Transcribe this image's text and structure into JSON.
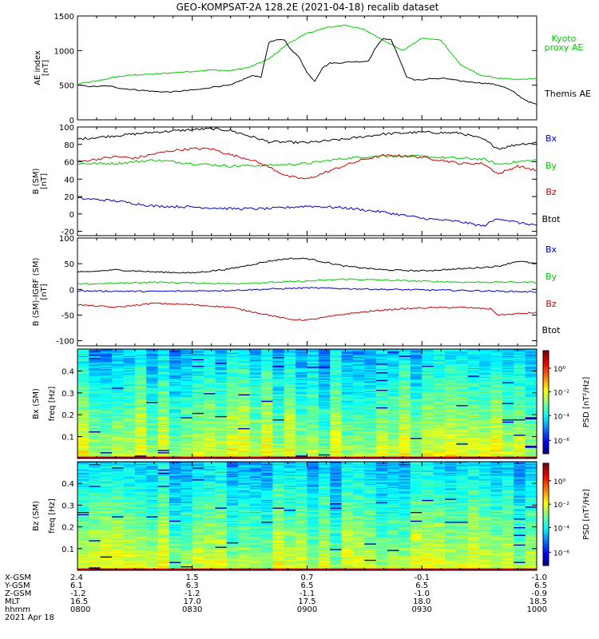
{
  "title": "GEO-KOMPSAT-2A 128.2E (2021-04-18) recalib dataset",
  "time_axis": {
    "row_labels": [
      "X-GSM",
      "Y-GSM",
      "Z-GSM",
      "MLT",
      "hhmm",
      "2021 Apr 18"
    ],
    "columns": [
      {
        "values": [
          "2.4",
          "6.1",
          "-1.2",
          "16.5",
          "0800"
        ]
      },
      {
        "values": [
          "1.5",
          "6.3",
          "-1.2",
          "17.0",
          "0830"
        ]
      },
      {
        "values": [
          "0.7",
          "6.5",
          "-1.1",
          "17.5",
          "0900"
        ]
      },
      {
        "values": [
          "-0.1",
          "6.5",
          "-1.0",
          "18.0",
          "0930"
        ]
      },
      {
        "values": [
          "-1.0",
          "6.5",
          "-0.9",
          "18.5",
          "1000"
        ]
      }
    ]
  },
  "colors": {
    "black": "#000000",
    "green": "#00cc00",
    "blue": "#0000cc",
    "red": "#cc0000"
  },
  "chart_data": [
    {
      "type": "line",
      "ylabel": "AE index [nT]",
      "xlim": [
        "0800",
        "1000"
      ],
      "ylim": [
        0,
        1500
      ],
      "yticks": [
        0,
        500,
        1000,
        1500
      ],
      "legend": [
        {
          "label": "Kyoto proxy AE",
          "color": "#00cc00"
        },
        {
          "label": "Themis AE",
          "color": "#000000"
        }
      ],
      "series": [
        {
          "name": "Kyoto proxy AE",
          "color": "#00cc00",
          "minutes": [
            0,
            5,
            10,
            15,
            20,
            25,
            30,
            35,
            40,
            45,
            50,
            55,
            60,
            65,
            70,
            75,
            80,
            85,
            90,
            95,
            100,
            105,
            110,
            115,
            120
          ],
          "values": [
            520,
            560,
            620,
            650,
            660,
            680,
            700,
            720,
            710,
            760,
            880,
            1100,
            1250,
            1330,
            1370,
            1300,
            1150,
            1000,
            1180,
            1150,
            800,
            650,
            600,
            580,
            600
          ]
        },
        {
          "name": "Themis AE",
          "color": "#000000",
          "minutes": [
            0,
            4,
            8,
            12,
            16,
            20,
            24,
            28,
            32,
            36,
            40,
            44,
            46,
            48,
            50,
            52,
            54,
            56,
            58,
            60,
            62,
            64,
            66,
            68,
            70,
            72,
            74,
            76,
            78,
            80,
            82,
            84,
            86,
            88,
            90,
            92,
            94,
            96,
            98,
            100,
            102,
            104,
            106,
            108,
            110,
            112,
            114,
            116,
            118,
            120
          ],
          "values": [
            500,
            480,
            490,
            450,
            430,
            410,
            400,
            420,
            440,
            480,
            500,
            600,
            640,
            620,
            1120,
            1150,
            1160,
            1000,
            900,
            680,
            560,
            750,
            820,
            820,
            830,
            840,
            840,
            850,
            1050,
            1180,
            1150,
            900,
            620,
            580,
            570,
            600,
            590,
            600,
            580,
            560,
            550,
            540,
            530,
            520,
            500,
            460,
            400,
            320,
            260,
            220
          ]
        }
      ]
    },
    {
      "type": "line",
      "ylabel": "B (SM) [nT]",
      "xlim": [
        "0800",
        "1000"
      ],
      "ylim": [
        -25,
        100
      ],
      "yticks": [
        -20,
        0,
        20,
        40,
        60,
        80,
        100
      ],
      "legend": [
        {
          "label": "Bx",
          "color": "#0000cc"
        },
        {
          "label": "By",
          "color": "#00cc00"
        },
        {
          "label": "Bz",
          "color": "#cc0000"
        },
        {
          "label": "Btot",
          "color": "#000000"
        }
      ],
      "series": [
        {
          "name": "Btot",
          "color": "#000000",
          "minutes": [
            0,
            10,
            20,
            30,
            35,
            40,
            50,
            60,
            70,
            80,
            90,
            100,
            106,
            110,
            115,
            120
          ],
          "values": [
            86,
            90,
            94,
            97,
            98,
            96,
            83,
            82,
            86,
            92,
            94,
            93,
            86,
            75,
            80,
            82
          ]
        },
        {
          "name": "By",
          "color": "#00cc00",
          "minutes": [
            0,
            10,
            20,
            30,
            40,
            50,
            60,
            70,
            80,
            90,
            100,
            106,
            110,
            115,
            120
          ],
          "values": [
            58,
            58,
            62,
            58,
            55,
            56,
            58,
            64,
            67,
            66,
            64,
            63,
            57,
            60,
            62
          ]
        },
        {
          "name": "Bz",
          "color": "#cc0000",
          "minutes": [
            0,
            5,
            10,
            15,
            20,
            25,
            30,
            35,
            40,
            45,
            50,
            55,
            60,
            65,
            70,
            75,
            80,
            85,
            90,
            95,
            100,
            106,
            108,
            110,
            115,
            120
          ],
          "values": [
            60,
            63,
            66,
            64,
            69,
            73,
            75,
            75,
            68,
            63,
            54,
            43,
            40,
            48,
            56,
            63,
            67,
            67,
            65,
            62,
            58,
            58,
            52,
            46,
            55,
            50
          ]
        },
        {
          "name": "Bx",
          "color": "#0000cc",
          "minutes": [
            0,
            10,
            20,
            30,
            40,
            50,
            60,
            70,
            80,
            90,
            100,
            106,
            110,
            115,
            120
          ],
          "values": [
            18,
            15,
            9,
            8,
            6,
            6,
            9,
            7,
            2,
            -5,
            -9,
            -14,
            -5,
            -10,
            -13
          ]
        }
      ]
    },
    {
      "type": "line",
      "ylabel": "B (SM)-IGRF (SM) [nT]",
      "xlim": [
        "0800",
        "1000"
      ],
      "ylim": [
        -110,
        100
      ],
      "yticks": [
        -100,
        -50,
        0,
        50,
        100
      ],
      "legend": [
        {
          "label": "Bx",
          "color": "#0000cc"
        },
        {
          "label": "By",
          "color": "#00cc00"
        },
        {
          "label": "Bz",
          "color": "#cc0000"
        },
        {
          "label": "Btot",
          "color": "#000000"
        }
      ],
      "series": [
        {
          "name": "Btot",
          "color": "#000000",
          "minutes": [
            0,
            10,
            20,
            30,
            40,
            50,
            55,
            60,
            70,
            80,
            90,
            100,
            110,
            115,
            120
          ],
          "values": [
            33,
            38,
            34,
            32,
            40,
            55,
            60,
            60,
            45,
            38,
            36,
            40,
            45,
            55,
            50
          ]
        },
        {
          "name": "By",
          "color": "#00cc00",
          "minutes": [
            0,
            20,
            40,
            60,
            70,
            80,
            100,
            120
          ],
          "values": [
            10,
            14,
            11,
            16,
            20,
            18,
            14,
            14
          ]
        },
        {
          "name": "Bx",
          "color": "#0000cc",
          "minutes": [
            0,
            20,
            40,
            60,
            80,
            100,
            120
          ],
          "values": [
            -3,
            -4,
            -2,
            3,
            0,
            -2,
            -5
          ]
        },
        {
          "name": "Bz",
          "color": "#cc0000",
          "minutes": [
            0,
            10,
            20,
            30,
            40,
            50,
            55,
            60,
            70,
            80,
            90,
            100,
            108,
            110,
            120
          ],
          "values": [
            -30,
            -35,
            -27,
            -30,
            -35,
            -50,
            -58,
            -60,
            -48,
            -40,
            -36,
            -35,
            -38,
            -50,
            -45
          ]
        }
      ]
    },
    {
      "type": "heatmap",
      "ylabel": "Bx (SM) freq [Hz]",
      "ylim": [
        0,
        0.5
      ],
      "yticks": [
        0.1,
        0.2,
        0.3,
        0.4
      ],
      "colorbar": {
        "label": "PSD [nT²/Hz]",
        "ticks": [
          "10⁰",
          "10⁻²",
          "10⁻⁴",
          "10⁻⁶"
        ]
      }
    },
    {
      "type": "heatmap",
      "ylabel": "Bz (SM) freq [Hz]",
      "ylim": [
        0,
        0.5
      ],
      "yticks": [
        0.1,
        0.2,
        0.3,
        0.4
      ],
      "colorbar": {
        "label": "PSD [nT²/Hz]",
        "ticks": [
          "10⁰",
          "10⁻²",
          "10⁻⁴",
          "10⁻⁶"
        ]
      }
    }
  ]
}
